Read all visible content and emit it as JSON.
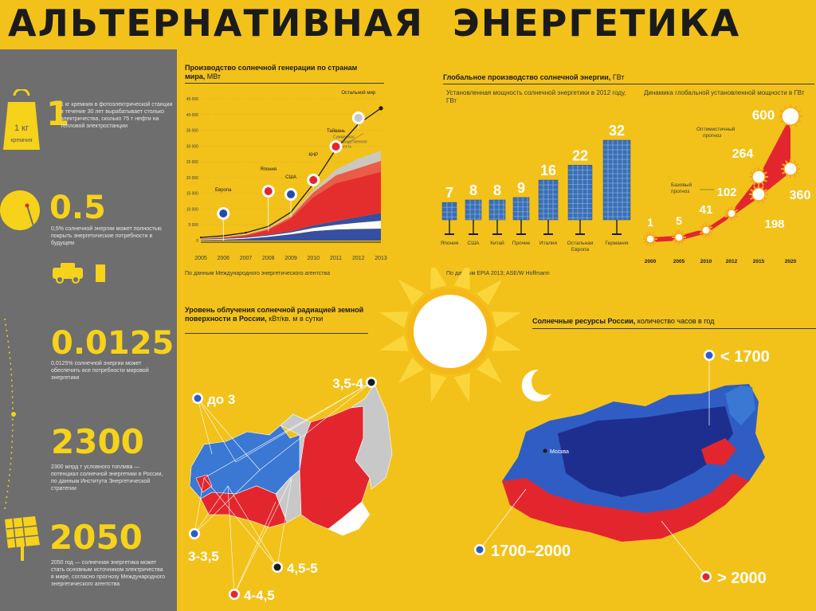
{
  "title": {
    "word1": "АЛЬТЕРНАТИВНАЯ",
    "word2": "ЭНЕРГЕТИКА"
  },
  "sidebar": {
    "weight_icon_label": "1 кг",
    "weight_icon_sub": "кремния",
    "stats": [
      {
        "value": "1",
        "text": "1 кг кремния в фотоэлектрической станции в течение 30 лет вырабатывает столько электричества, сколько 75 т нефти на тепловой электростанции"
      },
      {
        "value": "0.5",
        "text": "0,5% солнечной энергии может полностью покрыть энергетические потребности в будущем"
      },
      {
        "value": "0.0125",
        "text": "0,0125% солнечной энергии может обеспечить все потребности мировой энергетики"
      },
      {
        "value": "2300",
        "text": "2300 млрд т условного топлива — потенциал солнечной энергетики в России, по данным Института Энергетической стратегии"
      },
      {
        "value": "2050",
        "text": "2050 год — солнечная энергетика может стать основным источником электричества в мире, согласно прогнозу Международного энергетического агентства"
      }
    ]
  },
  "chart_data": [
    {
      "type": "area",
      "title": "Производство солнечной генерации по странам мира,",
      "title_unit": "МВт",
      "x": [
        "2005",
        "2006",
        "2007",
        "2008",
        "2009",
        "2010",
        "2011",
        "2012",
        "2013"
      ],
      "ylim": [
        0,
        45000
      ],
      "yticks": [
        "0",
        "5 000",
        "10 000",
        "15 000",
        "20 000",
        "25 000",
        "30 000",
        "35 000",
        "40 000",
        "45 000"
      ],
      "series": [
        {
          "name": "Европа",
          "color": "#2a4aa8",
          "values": [
            200,
            300,
            600,
            1200,
            2000,
            3000,
            3500,
            3700,
            3800
          ]
        },
        {
          "name": "Япония",
          "color": "#ffffff",
          "values": [
            200,
            250,
            300,
            400,
            600,
            1000,
            1500,
            2000,
            2500
          ]
        },
        {
          "name": "США",
          "color": "#2a4aa8",
          "values": [
            100,
            150,
            200,
            300,
            400,
            800,
            1200,
            1800,
            2500
          ]
        },
        {
          "name": "КНР",
          "color": "#e3262e",
          "values": [
            100,
            200,
            500,
            1500,
            4000,
            9000,
            12000,
            12500,
            13000
          ]
        },
        {
          "name": "Тайвань",
          "color": "#e8564a",
          "values": [
            50,
            100,
            200,
            300,
            600,
            1500,
            2500,
            3000,
            3500
          ]
        },
        {
          "name": "Остальной мир",
          "color": "#c8c8c8",
          "values": [
            50,
            100,
            200,
            300,
            400,
            700,
            1800,
            3000,
            3200
          ]
        }
      ],
      "total_label": "Суммарная производственная мощность",
      "total": [
        1000,
        1500,
        2500,
        4500,
        9000,
        18000,
        29000,
        37000,
        42000
      ],
      "source": "По данным Международного энергетического агентства"
    },
    {
      "type": "bar",
      "title": "Глобальное производство солнечной энергии,",
      "title_unit": "ГВт",
      "subtitle": "Установленная мощность солнечной энергетики в 2012 году, ГВт",
      "categories": [
        "Япония",
        "США",
        "Китай",
        "Прочие",
        "Италия",
        "Остальная Европа",
        "Германия"
      ],
      "values": [
        7,
        8,
        8,
        9,
        16,
        22,
        32
      ],
      "value_labels": [
        "7",
        "8",
        "8",
        "9",
        "16",
        "22",
        "32"
      ]
    },
    {
      "type": "line",
      "subtitle": "Динамика глобальной установленной мощности в ГВт",
      "x": [
        "2000",
        "2005",
        "2010",
        "2012",
        "2015",
        "2020"
      ],
      "series": [
        {
          "name": "Базовый прогноз",
          "values": [
            1,
            5,
            41,
            102,
            198,
            360
          ]
        },
        {
          "name": "Оптимистичный прогноз",
          "values": [
            1,
            5,
            41,
            102,
            264,
            600
          ]
        }
      ],
      "labels": [
        "1",
        "5",
        "41",
        "102",
        "198",
        "264",
        "360",
        "600"
      ],
      "base_label": "Базовый прогноз",
      "optimistic_label": "Оптимистичный прогноз",
      "source": "По данным EPIA 2013; ASE/W Hoffmann"
    }
  ],
  "map_left": {
    "title": "Уровень облучения солнечной радиацией земной поверхности в России,",
    "title_unit": "кВт/кв. м в сутки",
    "legend": [
      {
        "label": "до 3",
        "color": "#2f5dc4"
      },
      {
        "label": "3,5-4",
        "color": "#ffffff"
      },
      {
        "label": "3-3,5",
        "color": "#2f5dc4"
      },
      {
        "label": "4,5-5",
        "color": "#ffffff"
      },
      {
        "label": "4-4,5",
        "color": "#e3262e"
      }
    ]
  },
  "map_right": {
    "title": "Солнечные ресурсы России,",
    "title_unit": "количество часов в год",
    "city": "Москва",
    "legend": [
      {
        "label": "< 1700",
        "color": "#2f5dc4"
      },
      {
        "label": "1700–2000",
        "color": "#2f5dc4"
      },
      {
        "label": "> 2000",
        "color": "#e3262e"
      }
    ]
  },
  "colors": {
    "yellow": "#f2c21b",
    "gray": "#6e6e6e",
    "red": "#e3262e",
    "blue": "#2a4aa8",
    "dark": "#1b1b1b"
  }
}
